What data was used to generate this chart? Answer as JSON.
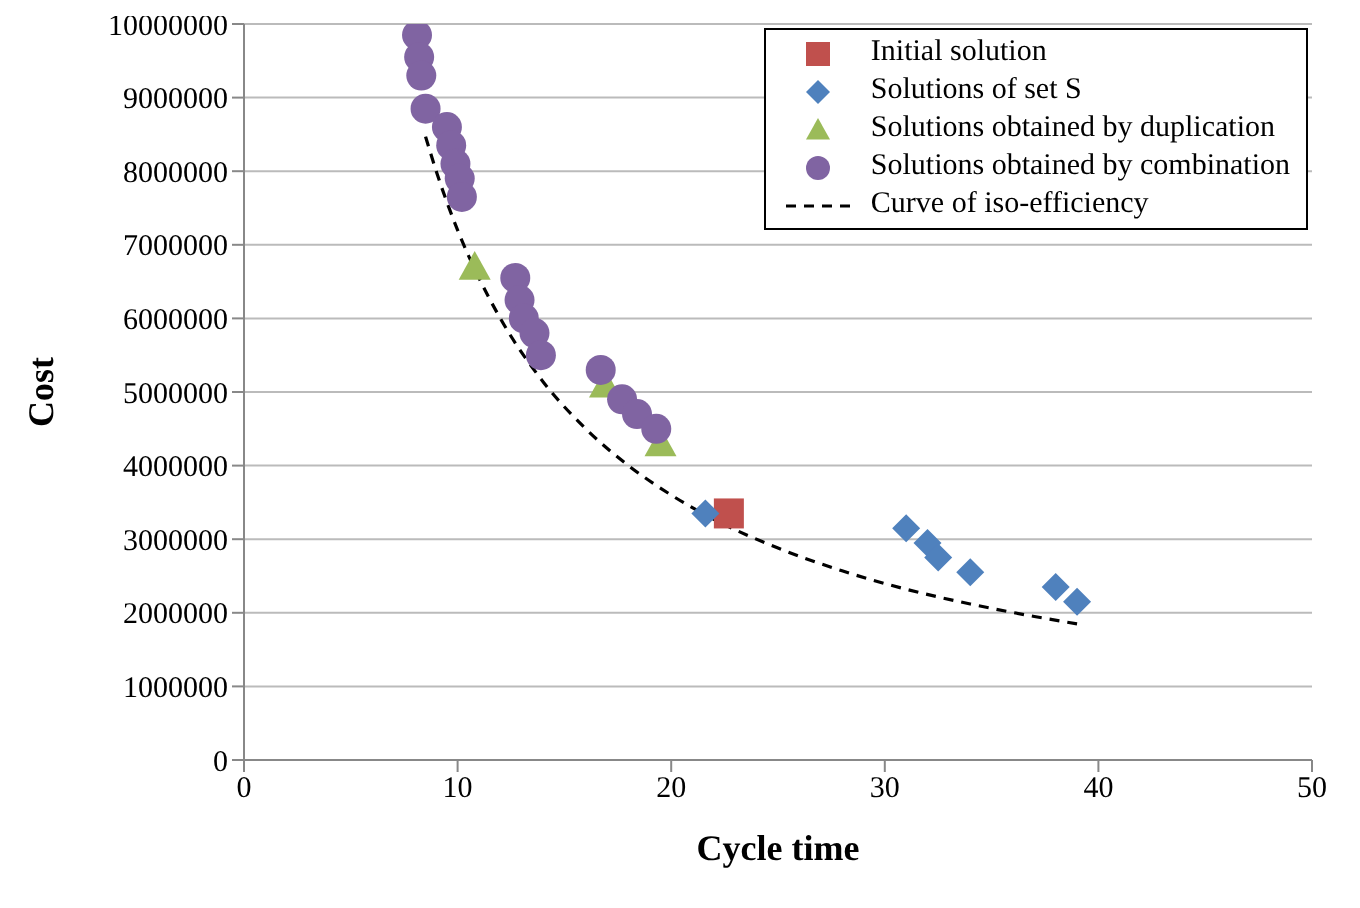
{
  "chart_data": {
    "type": "scatter",
    "xlabel": "Cycle time",
    "ylabel": "Cost",
    "xlim": [
      0,
      50
    ],
    "xticks": [
      0,
      10,
      20,
      30,
      40,
      50
    ],
    "ylim": [
      0,
      10000000
    ],
    "yticks": [
      0,
      1000000,
      2000000,
      3000000,
      4000000,
      5000000,
      6000000,
      7000000,
      8000000,
      9000000,
      10000000
    ],
    "grid": "y",
    "legend": "top right",
    "series": [
      {
        "name": "Initial solution",
        "color": "#c0504d",
        "marker": "square",
        "x": [
          22.7
        ],
        "values": [
          3350000
        ]
      },
      {
        "name": "Solutions of set S",
        "color": "#4f81bd",
        "marker": "diamond",
        "x": [
          21.6,
          31.0,
          32.0,
          32.5,
          34.0,
          38.0,
          39.0
        ],
        "values": [
          3350000,
          3150000,
          2950000,
          2750000,
          2550000,
          2350000,
          2150000
        ]
      },
      {
        "name": "Solutions obtained by duplication",
        "color": "#9bbb59",
        "marker": "triangle",
        "x": [
          10.8,
          16.9,
          19.5
        ],
        "values": [
          6700000,
          5100000,
          4300000
        ]
      },
      {
        "name": "Solutions obtained by combination",
        "color": "#8064a2",
        "marker": "circle",
        "x": [
          8.1,
          8.2,
          8.3,
          8.4,
          8.5,
          9.5,
          9.7,
          9.9,
          10.1,
          10.2,
          12.7,
          12.9,
          13.1,
          13.6,
          13.9,
          16.7,
          17.7,
          18.4,
          19.3
        ],
        "values": [
          9850000,
          9550000,
          9300000,
          null,
          8850000,
          8600000,
          8350000,
          8100000,
          7900000,
          7650000,
          6550000,
          6250000,
          6000000,
          5800000,
          5500000,
          5300000,
          4900000,
          4700000,
          4500000
        ]
      },
      {
        "name": "Curve of iso-efficiency",
        "type": "line",
        "color": "#000000",
        "marker": "none",
        "line_style": "dashed",
        "x": [
          8.5,
          9,
          10,
          11,
          12,
          14,
          16,
          18,
          20,
          22,
          25,
          28,
          31,
          34,
          37,
          39
        ],
        "values": [
          8470000,
          8000000,
          7200000,
          6550000,
          6000000,
          5140000,
          4500000,
          4000000,
          3600000,
          3270000,
          2880000,
          2570000,
          2320000,
          2120000,
          1950000,
          1850000
        ]
      }
    ]
  }
}
